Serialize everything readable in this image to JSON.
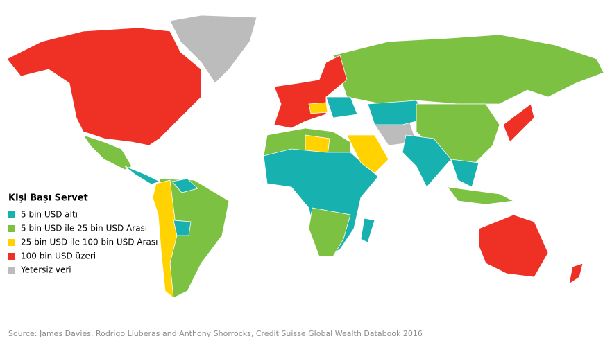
{
  "legend": {
    "title": "Kişi Başı Servet",
    "items": [
      {
        "label": "5 bin USD altı",
        "color": "#17b2b0"
      },
      {
        "label": "5 bin USD ile 25 bin USD Arası",
        "color": "#7dc142"
      },
      {
        "label": "25 bin USD ile 100 bin USD Arası",
        "color": "#ffd200"
      },
      {
        "label": "100 bin USD üzeri",
        "color": "#ee3124"
      },
      {
        "label": "Yetersiz veri",
        "color": "#bcbcbc"
      }
    ]
  },
  "source": "Source: James Davies, Rodrigo Lluberas and Anthony Shorrocks, Credit Suisse Global Wealth Databook 2016"
}
